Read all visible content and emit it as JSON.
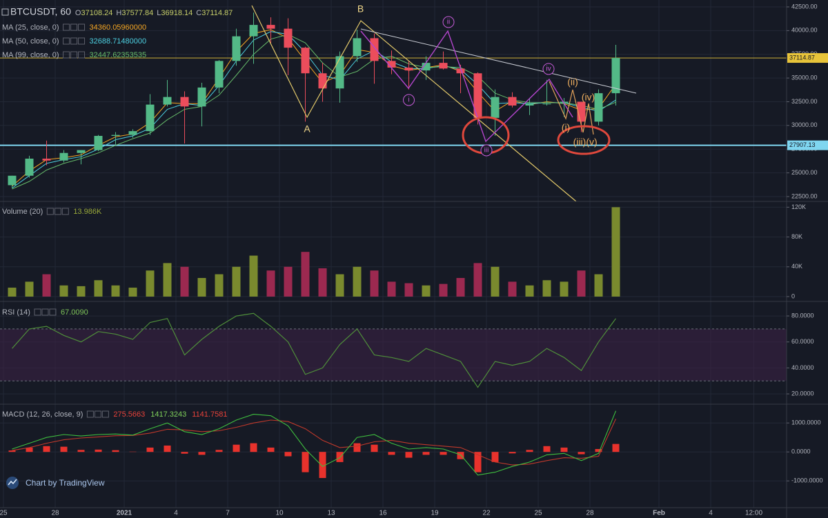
{
  "watermark": "Chart by TradingView",
  "chart_data": [
    {
      "type": "candlestick",
      "title": "BTCUSDT, 60",
      "ohlc": [
        {
          "label": "O",
          "value": "37108.24"
        },
        {
          "label": "H",
          "value": "37577.84"
        },
        {
          "label": "L",
          "value": "36918.14"
        },
        {
          "label": "C",
          "value": "37114.87"
        }
      ],
      "up_color": "#53b987",
      "down_color": "#eb4d5c",
      "x": [
        0.5,
        1.5,
        2.5,
        3.5,
        4.5,
        5.5,
        6.5,
        7.5,
        8.5,
        9.5,
        10.5,
        11.5,
        12.5,
        13.5,
        14.5,
        15.5,
        16.5,
        17.5,
        18.5,
        19.5,
        20.5,
        21.5,
        22.5,
        23.5,
        24.5,
        25.5,
        26.5,
        27.5,
        28.5,
        29.5,
        30.5,
        31.5,
        32.5,
        33.5,
        34.5,
        35.5
      ],
      "open": [
        23700,
        24700,
        26500,
        26300,
        27100,
        27400,
        28900,
        29000,
        29400,
        32200,
        33000,
        32000,
        34000,
        36800,
        39400,
        40600,
        40200,
        38200,
        35500,
        33900,
        37300,
        39200,
        36800,
        36100,
        35800,
        36600,
        36000,
        35500,
        30800,
        33000,
        32100,
        32300,
        32300,
        32500,
        30400,
        33400
      ],
      "high": [
        24700,
        26800,
        28400,
        27400,
        27400,
        29000,
        29300,
        29600,
        33300,
        34800,
        33600,
        34500,
        36900,
        40200,
        41900,
        41400,
        41300,
        38300,
        36600,
        37800,
        40100,
        39700,
        37900,
        36800,
        37300,
        37800,
        36400,
        35600,
        33800,
        33500,
        32900,
        34800,
        32900,
        32500,
        33800,
        38500
      ],
      "low": [
        23400,
        24500,
        25800,
        26100,
        25900,
        27300,
        28000,
        28700,
        29000,
        32000,
        28100,
        29900,
        33400,
        36300,
        36500,
        38700,
        35300,
        30400,
        32500,
        32400,
        36700,
        34400,
        35400,
        33800,
        34800,
        35900,
        33400,
        30100,
        28900,
        31900,
        31100,
        32100,
        30900,
        29300,
        30000,
        32100
      ],
      "close": [
        24700,
        26500,
        26300,
        27100,
        27400,
        28900,
        29000,
        29400,
        32200,
        33000,
        32000,
        34000,
        36800,
        39400,
        40600,
        40200,
        38200,
        35500,
        33900,
        37300,
        39200,
        36800,
        36100,
        35800,
        36600,
        36000,
        35500,
        30800,
        33000,
        32100,
        32300,
        32300,
        32500,
        30400,
        33400,
        37114.87
      ],
      "series": [
        {
          "name": "MA (25, close, 0)",
          "color": "#f5a623",
          "last": "34360.05960000",
          "values": [
            23600,
            25200,
            26400,
            26600,
            26900,
            27900,
            28800,
            29100,
            30300,
            32400,
            32300,
            32300,
            35000,
            37800,
            39700,
            40100,
            39200,
            36800,
            34500,
            35300,
            38000,
            37700,
            36300,
            35800,
            36100,
            36400,
            35700,
            33500,
            31500,
            32600,
            32200,
            32500,
            32300,
            31600,
            31800,
            34360
          ]
        },
        {
          "name": "MA (50, close, 0)",
          "color": "#4dd0e1",
          "last": "32688.71480000",
          "values": [
            23400,
            24700,
            26000,
            26400,
            26700,
            27500,
            28500,
            28900,
            29700,
            31700,
            32300,
            32100,
            34200,
            36800,
            39000,
            39900,
            39600,
            37700,
            35300,
            34800,
            37000,
            37900,
            36700,
            36000,
            36000,
            36300,
            35900,
            34300,
            32300,
            32400,
            32300,
            32400,
            32400,
            31900,
            31500,
            32688
          ]
        },
        {
          "name": "MA (99, close, 0)",
          "color": "#66bb6a",
          "last": "32447.62353535",
          "values": [
            23300,
            24100,
            25300,
            26000,
            26500,
            27100,
            27900,
            28600,
            29200,
            30600,
            31700,
            32000,
            33200,
            35300,
            37500,
            39100,
            39600,
            38700,
            36600,
            35100,
            35700,
            37000,
            37300,
            36500,
            36100,
            36200,
            36100,
            35200,
            33400,
            32700,
            32400,
            32400,
            32400,
            32100,
            31700,
            32447
          ]
        }
      ],
      "levels": [
        {
          "value": 27907.13,
          "color": "#7fd6f0"
        },
        {
          "value": 37114.87,
          "color": "#e8c43a"
        }
      ],
      "annotations": [
        {
          "text": "A",
          "x": 17.6,
          "y": 29555,
          "color": "#f3d98a"
        },
        {
          "text": "B",
          "x": 20.7,
          "y": 42209,
          "color": "#f3d98a"
        },
        {
          "text": "i",
          "x": 23.5,
          "y": 32682,
          "color": "#c75cd9",
          "circled": true
        },
        {
          "text": "ii",
          "x": 25.8,
          "y": 40900,
          "color": "#c75cd9",
          "circled": true
        },
        {
          "text": "iii",
          "x": 28,
          "y": 27372,
          "color": "#c75cd9",
          "circled": true
        },
        {
          "text": "iv",
          "x": 31.6,
          "y": 35955,
          "color": "#c75cd9",
          "circled": true
        },
        {
          "text": "(i)",
          "x": 32.6,
          "y": 29700,
          "color": "#f0b060"
        },
        {
          "text": "(ii)",
          "x": 33,
          "y": 34500,
          "color": "#f0b060"
        },
        {
          "text": "(iii)",
          "x": 33.4,
          "y": 28173,
          "color": "#f0b060"
        },
        {
          "text": "(iv)",
          "x": 33.9,
          "y": 32900,
          "color": "#f0b060"
        },
        {
          "text": "(v)",
          "x": 34.1,
          "y": 28173,
          "color": "#f0b060"
        }
      ],
      "xlim": [
        -0.2,
        45.4
      ],
      "xticks": [
        {
          "value": 0,
          "label": "25"
        },
        {
          "value": 3,
          "label": "28"
        },
        {
          "value": 7,
          "label": "2021"
        },
        {
          "value": 10,
          "label": "4"
        },
        {
          "value": 13,
          "label": "7"
        },
        {
          "value": 16,
          "label": "10"
        },
        {
          "value": 19,
          "label": "13"
        },
        {
          "value": 22,
          "label": "16"
        },
        {
          "value": 25,
          "label": "19"
        },
        {
          "value": 28,
          "label": "22"
        },
        {
          "value": 31,
          "label": "25"
        },
        {
          "value": 34,
          "label": "28"
        },
        {
          "value": 38,
          "label": "Feb"
        },
        {
          "value": 41,
          "label": "4"
        },
        {
          "value": 43.5,
          "label": "12:00"
        }
      ],
      "ylim": [
        22136,
        43227
      ],
      "yticks": [
        {
          "value": 22500,
          "label": "22500.00"
        },
        {
          "value": 25000,
          "label": "25000.00"
        },
        {
          "value": 27500,
          "label": "27500.00"
        },
        {
          "value": 30000,
          "label": "30000.00"
        },
        {
          "value": 32500,
          "label": "32500.00"
        },
        {
          "value": 35000,
          "label": "35000.00"
        },
        {
          "value": 37500,
          "label": "37500.00"
        },
        {
          "value": 40000,
          "label": "40000.00"
        },
        {
          "value": 42500,
          "label": "42500.00"
        }
      ]
    },
    {
      "type": "volume",
      "title": "Volume (20)",
      "last": "13.986K",
      "x": [
        0.5,
        1.5,
        2.5,
        3.5,
        4.5,
        5.5,
        6.5,
        7.5,
        8.5,
        9.5,
        10.5,
        11.5,
        12.5,
        13.5,
        14.5,
        15.5,
        16.5,
        17.5,
        18.5,
        19.5,
        20.5,
        21.5,
        22.5,
        23.5,
        24.5,
        25.5,
        26.5,
        27.5,
        28.5,
        29.5,
        30.5,
        31.5,
        32.5,
        33.5,
        34.5,
        35.5
      ],
      "values": [
        12000,
        20000,
        30000,
        15000,
        14000,
        22000,
        15000,
        12000,
        35000,
        45000,
        40000,
        25000,
        30000,
        40000,
        55000,
        35000,
        40000,
        60000,
        38000,
        30000,
        40000,
        35000,
        20000,
        18000,
        15000,
        17000,
        25000,
        45000,
        40000,
        20000,
        15000,
        22000,
        20000,
        35000,
        30000,
        120000
      ],
      "up_color": "#7a8a2e",
      "down_color": "#9c2950",
      "ylim": [
        0,
        125000
      ],
      "yticks": [
        0,
        {
          "value": 40000,
          "label": "40K"
        },
        {
          "value": 80000,
          "label": "80K"
        },
        {
          "value": 120000,
          "label": "120K"
        }
      ]
    },
    {
      "type": "line",
      "title": "RSI (14)",
      "last": "67.0090",
      "color": "#4f8f3a",
      "x": [
        0.5,
        1.5,
        2.5,
        3.5,
        4.5,
        5.5,
        6.5,
        7.5,
        8.5,
        9.5,
        10.5,
        11.5,
        12.5,
        13.5,
        14.5,
        15.5,
        16.5,
        17.5,
        18.5,
        19.5,
        20.5,
        21.5,
        22.5,
        23.5,
        24.5,
        25.5,
        26.5,
        27.5,
        28.5,
        29.5,
        30.5,
        31.5,
        32.5,
        33.5,
        34.5,
        35.5
      ],
      "values": [
        55,
        70,
        72,
        65,
        60,
        68,
        66,
        62,
        75,
        78,
        50,
        62,
        72,
        80,
        82,
        72,
        60,
        35,
        40,
        58,
        70,
        50,
        48,
        45,
        55,
        50,
        45,
        25,
        45,
        42,
        45,
        55,
        48,
        38,
        60,
        78
      ],
      "band": [
        30,
        70
      ],
      "band_color": "#3a2144",
      "ylim": [
        12.6,
        89.6
      ],
      "yticks": [
        {
          "value": 20,
          "label": "20.0000"
        },
        {
          "value": 40,
          "label": "40.0000"
        },
        {
          "value": 60,
          "label": "60.0000"
        },
        {
          "value": 80,
          "label": "80.0000"
        }
      ]
    },
    {
      "type": "macd",
      "title": "MACD (12, 26, close, 9)",
      "x": [
        0.5,
        1.5,
        2.5,
        3.5,
        4.5,
        5.5,
        6.5,
        7.5,
        8.5,
        9.5,
        10.5,
        11.5,
        12.5,
        13.5,
        14.5,
        15.5,
        16.5,
        17.5,
        18.5,
        19.5,
        20.5,
        21.5,
        22.5,
        23.5,
        24.5,
        25.5,
        26.5,
        27.5,
        28.5,
        29.5,
        30.5,
        31.5,
        32.5,
        33.5,
        34.5,
        35.5
      ],
      "histogram": {
        "color": "#e8322c",
        "last": "275.5663",
        "values": [
          50,
          150,
          200,
          180,
          70,
          80,
          60,
          10,
          150,
          220,
          -60,
          -100,
          70,
          250,
          300,
          150,
          -150,
          -700,
          -900,
          -350,
          300,
          250,
          -100,
          -200,
          -100,
          -100,
          -250,
          -700,
          -350,
          -50,
          70,
          200,
          150,
          -80,
          100,
          275.5663
        ]
      },
      "macd": {
        "color": "#3fbf3f",
        "last": "1417.3243",
        "values": [
          100,
          300,
          500,
          600,
          550,
          600,
          620,
          580,
          800,
          1000,
          700,
          600,
          800,
          1100,
          1300,
          1250,
          900,
          100,
          -500,
          -200,
          500,
          600,
          300,
          100,
          150,
          100,
          -100,
          -800,
          -700,
          -500,
          -350,
          -100,
          -50,
          -300,
          -50,
          1417.3243
        ]
      },
      "signal": {
        "color": "#c0392b",
        "last": "1141.7581",
        "values": [
          50,
          150,
          300,
          420,
          480,
          520,
          560,
          570,
          650,
          780,
          760,
          700,
          730,
          850,
          1000,
          1100,
          1050,
          800,
          400,
          150,
          200,
          350,
          400,
          300,
          250,
          200,
          150,
          -100,
          -350,
          -450,
          -420,
          -300,
          -200,
          -220,
          -150,
          1141.7581
        ]
      },
      "ylim": [
        -1900,
        1600
      ],
      "yticks": [
        {
          "value": -1000,
          "label": "-1000.0000"
        },
        {
          "value": 0,
          "label": "0.0000"
        },
        {
          "value": 1000,
          "label": "1000.0000"
        }
      ]
    }
  ]
}
